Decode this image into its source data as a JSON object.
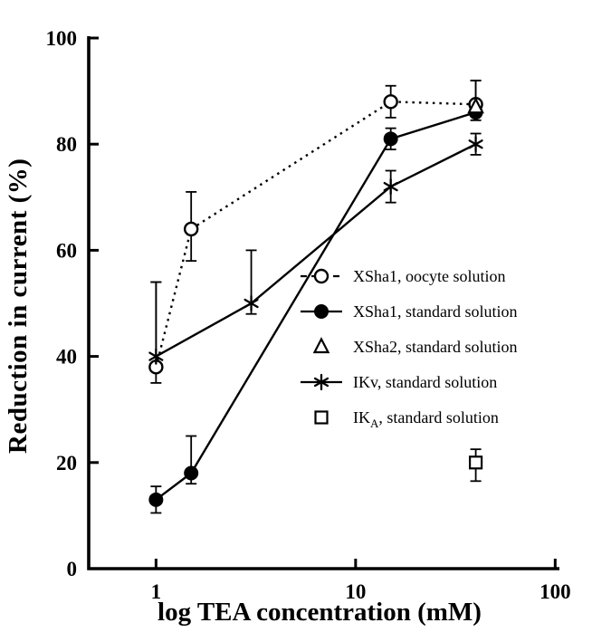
{
  "chart_data": {
    "type": "line",
    "title": "",
    "xlabel": "log TEA concentration (mM)",
    "ylabel": "Reduction in current (%)",
    "x_scale": "log",
    "xlim": [
      0.46,
      105
    ],
    "ylim": [
      0,
      100
    ],
    "x_ticks": [
      "1",
      "10",
      "100"
    ],
    "x_tick_values": [
      1,
      10,
      100
    ],
    "y_ticks": [
      "0",
      "20",
      "40",
      "60",
      "80",
      "100"
    ],
    "y_tick_values": [
      0,
      20,
      40,
      60,
      80,
      100
    ],
    "grid": false,
    "legend_position": "middle-right",
    "colors": {
      "ink": "#000000",
      "background": "#ffffff"
    },
    "series": [
      {
        "name": "XSha1, oocyte solution",
        "label_parts": [
          {
            "text": "XSha1, oocyte solution"
          }
        ],
        "marker": "circle-open",
        "line": "dotted",
        "points": [
          {
            "x": 1,
            "y": 38,
            "err_up": 16,
            "err_down": 3
          },
          {
            "x": 1.5,
            "y": 64,
            "err_up": 7,
            "err_down": 6
          },
          {
            "x": 15,
            "y": 88,
            "err_up": 3,
            "err_down": 3
          },
          {
            "x": 40,
            "y": 87.5,
            "err_up": 4.5,
            "err_down": 1.5
          }
        ]
      },
      {
        "name": "XSha1, standard solution",
        "label_parts": [
          {
            "text": "XSha1, standard solution"
          }
        ],
        "marker": "circle-filled",
        "line": "solid",
        "points": [
          {
            "x": 1,
            "y": 13,
            "err_up": 2.5,
            "err_down": 2.5
          },
          {
            "x": 1.5,
            "y": 18,
            "err_up": 7,
            "err_down": 2
          },
          {
            "x": 15,
            "y": 81,
            "err_up": 2,
            "err_down": 2
          },
          {
            "x": 40,
            "y": 86,
            "err_up": 6,
            "err_down": 1.5
          }
        ]
      },
      {
        "name": "XSha2, standard solution",
        "label_parts": [
          {
            "text": "XSha2, standard solution"
          }
        ],
        "marker": "triangle-open",
        "line": "none",
        "points": [
          {
            "x": 40,
            "y": 87,
            "err_up": 0,
            "err_down": 0
          }
        ]
      },
      {
        "name": "IKv, standard solution",
        "label_parts": [
          {
            "text": "IKv, standard solution"
          }
        ],
        "marker": "asterisk",
        "line": "solid",
        "points": [
          {
            "x": 1,
            "y": 40,
            "err_up": 14,
            "err_down": 2
          },
          {
            "x": 3,
            "y": 50,
            "err_up": 10,
            "err_down": 2
          },
          {
            "x": 15,
            "y": 72,
            "err_up": 3,
            "err_down": 3
          },
          {
            "x": 40,
            "y": 80,
            "err_up": 2,
            "err_down": 2
          }
        ]
      },
      {
        "name": "IKA, standard solution",
        "label_parts": [
          {
            "text": "IK"
          },
          {
            "text": "A",
            "sub": true
          },
          {
            "text": ", standard solution"
          }
        ],
        "marker": "square-open",
        "line": "none",
        "points": [
          {
            "x": 40,
            "y": 20,
            "err_up": 2.5,
            "err_down": 3.5
          }
        ]
      }
    ]
  }
}
